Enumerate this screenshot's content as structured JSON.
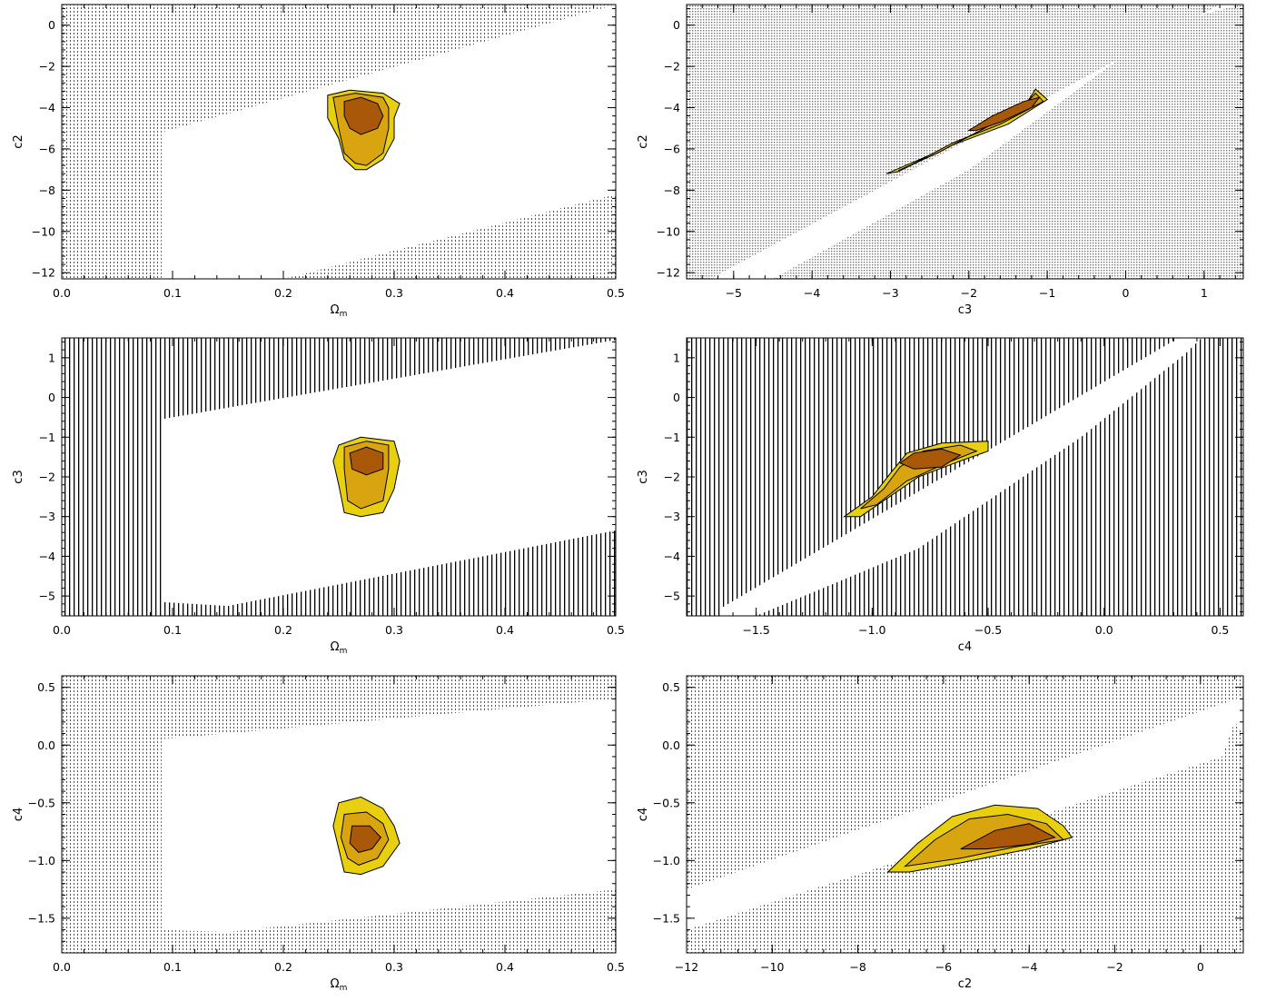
{
  "colors": {
    "ring_outer": "#e8d010",
    "ring_mid": "#d8a410",
    "ring_inner": "#a85808",
    "hatch_dense": "#b0b0b0",
    "hatch_black": "#000000",
    "hatch_dotted": "#777777"
  },
  "chart_data": [
    {
      "id": "omegam-c2",
      "type": "contour",
      "xlabel": "Ω",
      "xlabel_sub": "m",
      "ylabel": "c2",
      "xlim": [
        0.0,
        0.5
      ],
      "ylim": [
        -12.3,
        1.0
      ],
      "xticks": [
        0.0,
        0.1,
        0.2,
        0.3,
        0.4,
        0.5
      ],
      "xtick_labels": [
        "0.0",
        "0.1",
        "0.2",
        "0.3",
        "0.4",
        "0.5"
      ],
      "yticks": [
        -12,
        -10,
        -8,
        -6,
        -4,
        -2,
        0
      ],
      "ytick_labels": [
        "−12",
        "−10",
        "−8",
        "−6",
        "−4",
        "−2",
        "0"
      ],
      "hatch": "dotted",
      "excluded_regions": [
        [
          [
            0,
            -12.3
          ],
          [
            0.09,
            -12.3
          ],
          [
            0.09,
            -5.2
          ],
          [
            0.5,
            1.0
          ],
          [
            0,
            1.0
          ]
        ],
        [
          [
            0.2,
            -12.3
          ],
          [
            0.5,
            -12.3
          ],
          [
            0.5,
            -8.2
          ]
        ]
      ],
      "contours": {
        "outer": [
          [
            0.24,
            -3.4
          ],
          [
            0.26,
            -3.15
          ],
          [
            0.29,
            -3.3
          ],
          [
            0.305,
            -3.8
          ],
          [
            0.3,
            -4.5
          ],
          [
            0.3,
            -5.5
          ],
          [
            0.29,
            -6.5
          ],
          [
            0.275,
            -7.0
          ],
          [
            0.265,
            -7.0
          ],
          [
            0.255,
            -6.5
          ],
          [
            0.25,
            -5.5
          ],
          [
            0.24,
            -4.5
          ]
        ],
        "mid": [
          [
            0.245,
            -3.5
          ],
          [
            0.265,
            -3.3
          ],
          [
            0.29,
            -3.5
          ],
          [
            0.295,
            -4.0
          ],
          [
            0.295,
            -5.0
          ],
          [
            0.29,
            -6.2
          ],
          [
            0.275,
            -6.8
          ],
          [
            0.265,
            -6.7
          ],
          [
            0.255,
            -6.2
          ],
          [
            0.25,
            -5.0
          ]
        ],
        "inner": [
          [
            0.255,
            -3.7
          ],
          [
            0.27,
            -3.5
          ],
          [
            0.285,
            -3.8
          ],
          [
            0.29,
            -4.4
          ],
          [
            0.285,
            -5.0
          ],
          [
            0.27,
            -5.3
          ],
          [
            0.26,
            -5.0
          ],
          [
            0.255,
            -4.4
          ]
        ]
      }
    },
    {
      "id": "c3-c2",
      "type": "contour",
      "xlabel": "c3",
      "xlabel_sub": "",
      "ylabel": "c2",
      "xlim": [
        -5.6,
        1.5
      ],
      "ylim": [
        -12.3,
        1.0
      ],
      "xticks": [
        -5,
        -4,
        -3,
        -2,
        -1,
        0,
        1
      ],
      "xtick_labels": [
        "−5",
        "−4",
        "−3",
        "−2",
        "−1",
        "0",
        "1"
      ],
      "yticks": [
        -12,
        -10,
        -8,
        -6,
        -4,
        -2,
        0
      ],
      "ytick_labels": [
        "−12",
        "−10",
        "−8",
        "−6",
        "−4",
        "−2",
        "0"
      ],
      "hatch": "dense",
      "excluded_regions": [
        [
          [
            -5.6,
            -12.3
          ],
          [
            -5.3,
            -12.3
          ],
          [
            1.2,
            1.0
          ],
          [
            -5.6,
            1.0
          ]
        ],
        [
          [
            -4.5,
            -12.3
          ],
          [
            1.5,
            -12.3
          ],
          [
            1.5,
            1.0
          ],
          [
            1.45,
            1.0
          ],
          [
            0.5,
            0.0
          ],
          [
            -0.5,
            -2.8
          ],
          [
            -2.0,
            -7.0
          ]
        ]
      ],
      "contours": {
        "outer": [
          [
            -3.05,
            -7.2
          ],
          [
            -2.5,
            -6.3
          ],
          [
            -1.9,
            -5.2
          ],
          [
            -1.3,
            -4.0
          ],
          [
            -1.15,
            -3.1
          ],
          [
            -1.0,
            -3.6
          ],
          [
            -1.5,
            -4.8
          ],
          [
            -2.2,
            -5.8
          ],
          [
            -2.9,
            -7.1
          ]
        ],
        "mid": [
          [
            -2.9,
            -7.05
          ],
          [
            -2.4,
            -6.2
          ],
          [
            -1.8,
            -5.0
          ],
          [
            -1.3,
            -3.9
          ],
          [
            -1.15,
            -3.3
          ],
          [
            -1.05,
            -3.7
          ],
          [
            -1.6,
            -4.8
          ],
          [
            -2.2,
            -5.7
          ],
          [
            -2.8,
            -6.9
          ]
        ],
        "inner": [
          [
            -2.0,
            -5.1
          ],
          [
            -1.7,
            -4.4
          ],
          [
            -1.3,
            -3.7
          ],
          [
            -1.1,
            -3.5
          ],
          [
            -1.2,
            -4.0
          ],
          [
            -1.6,
            -4.7
          ],
          [
            -1.9,
            -5.1
          ]
        ]
      }
    },
    {
      "id": "omegam-c3",
      "type": "contour",
      "xlabel": "Ω",
      "xlabel_sub": "m",
      "ylabel": "c3",
      "xlim": [
        0.0,
        0.5
      ],
      "ylim": [
        -5.5,
        1.5
      ],
      "xticks": [
        0.0,
        0.1,
        0.2,
        0.3,
        0.4,
        0.5
      ],
      "xtick_labels": [
        "0.0",
        "0.1",
        "0.2",
        "0.3",
        "0.4",
        "0.5"
      ],
      "yticks": [
        -5,
        -4,
        -3,
        -2,
        -1,
        0,
        1
      ],
      "ytick_labels": [
        "−5",
        "−4",
        "−3",
        "−2",
        "−1",
        "0",
        "1"
      ],
      "hatch": "black",
      "excluded_regions": [
        [
          [
            0,
            -5.5
          ],
          [
            0.09,
            -5.5
          ],
          [
            0.09,
            -0.55
          ],
          [
            0.5,
            1.45
          ],
          [
            0.5,
            1.5
          ],
          [
            0,
            1.5
          ]
        ],
        [
          [
            0.09,
            -5.5
          ],
          [
            0.09,
            -5.15
          ],
          [
            0.15,
            -5.25
          ],
          [
            0.5,
            -3.35
          ],
          [
            0.5,
            -5.5
          ]
        ]
      ],
      "contours": {
        "outer": [
          [
            0.25,
            -1.2
          ],
          [
            0.27,
            -1.0
          ],
          [
            0.3,
            -1.1
          ],
          [
            0.305,
            -1.6
          ],
          [
            0.3,
            -2.3
          ],
          [
            0.29,
            -2.9
          ],
          [
            0.27,
            -3.0
          ],
          [
            0.255,
            -2.9
          ],
          [
            0.25,
            -2.2
          ],
          [
            0.245,
            -1.6
          ]
        ],
        "mid": [
          [
            0.255,
            -1.25
          ],
          [
            0.275,
            -1.1
          ],
          [
            0.295,
            -1.2
          ],
          [
            0.295,
            -1.8
          ],
          [
            0.29,
            -2.6
          ],
          [
            0.27,
            -2.8
          ],
          [
            0.258,
            -2.6
          ],
          [
            0.255,
            -1.8
          ]
        ],
        "inner": [
          [
            0.26,
            -1.4
          ],
          [
            0.275,
            -1.25
          ],
          [
            0.29,
            -1.4
          ],
          [
            0.29,
            -1.8
          ],
          [
            0.275,
            -1.95
          ],
          [
            0.262,
            -1.8
          ]
        ]
      }
    },
    {
      "id": "c4-c3",
      "type": "contour",
      "xlabel": "c4",
      "xlabel_sub": "",
      "ylabel": "c3",
      "xlim": [
        -1.8,
        0.6
      ],
      "ylim": [
        -5.5,
        1.5
      ],
      "xticks": [
        -1.5,
        -1.0,
        -0.5,
        0.0,
        0.5
      ],
      "xtick_labels": [
        "−1.5",
        "−1.0",
        "−0.5",
        "0.0",
        "0.5"
      ],
      "yticks": [
        -5,
        -4,
        -3,
        -2,
        -1,
        0,
        1
      ],
      "ytick_labels": [
        "−5",
        "−4",
        "−3",
        "−2",
        "−1",
        "0",
        "1"
      ],
      "hatch": "black",
      "excluded_regions": [
        [
          [
            -1.8,
            -5.5
          ],
          [
            -1.8,
            1.5
          ],
          [
            0.32,
            1.5
          ],
          [
            -1.65,
            -5.3
          ],
          [
            -1.65,
            -5.5
          ]
        ],
        [
          [
            -1.5,
            -5.5
          ],
          [
            0.6,
            -5.5
          ],
          [
            0.6,
            1.5
          ],
          [
            0.42,
            1.5
          ],
          [
            0.35,
            1.1
          ],
          [
            -0.1,
            -1.0
          ],
          [
            -0.8,
            -3.8
          ]
        ]
      ],
      "contours": {
        "outer": [
          [
            -1.12,
            -3.0
          ],
          [
            -1.0,
            -2.5
          ],
          [
            -0.92,
            -1.9
          ],
          [
            -0.85,
            -1.4
          ],
          [
            -0.7,
            -1.15
          ],
          [
            -0.5,
            -1.1
          ],
          [
            -0.5,
            -1.35
          ],
          [
            -0.62,
            -1.6
          ],
          [
            -0.8,
            -2.0
          ],
          [
            -0.95,
            -2.6
          ],
          [
            -1.05,
            -3.0
          ]
        ],
        "mid": [
          [
            -1.05,
            -2.8
          ],
          [
            -0.95,
            -2.3
          ],
          [
            -0.88,
            -1.75
          ],
          [
            -0.78,
            -1.35
          ],
          [
            -0.62,
            -1.2
          ],
          [
            -0.55,
            -1.35
          ],
          [
            -0.68,
            -1.65
          ],
          [
            -0.85,
            -2.1
          ],
          [
            -0.98,
            -2.7
          ]
        ],
        "inner": [
          [
            -0.88,
            -1.65
          ],
          [
            -0.82,
            -1.4
          ],
          [
            -0.7,
            -1.3
          ],
          [
            -0.62,
            -1.45
          ],
          [
            -0.7,
            -1.75
          ],
          [
            -0.82,
            -1.8
          ]
        ]
      }
    },
    {
      "id": "omegam-c4",
      "type": "contour",
      "xlabel": "Ω",
      "xlabel_sub": "m",
      "ylabel": "c4",
      "xlim": [
        0.0,
        0.5
      ],
      "ylim": [
        -1.8,
        0.6
      ],
      "xticks": [
        0.0,
        0.1,
        0.2,
        0.3,
        0.4,
        0.5
      ],
      "xtick_labels": [
        "0.0",
        "0.1",
        "0.2",
        "0.3",
        "0.4",
        "0.5"
      ],
      "yticks": [
        -1.5,
        -1.0,
        -0.5,
        0.0,
        0.5
      ],
      "ytick_labels": [
        "−1.5",
        "−1.0",
        "−0.5",
        "0.0",
        "0.5"
      ],
      "hatch": "dotted",
      "excluded_regions": [
        [
          [
            0,
            -1.8
          ],
          [
            0.09,
            -1.8
          ],
          [
            0.09,
            0.05
          ],
          [
            0.5,
            0.4
          ],
          [
            0.5,
            0.6
          ],
          [
            0,
            0.6
          ]
        ],
        [
          [
            0.09,
            -1.8
          ],
          [
            0.09,
            -1.6
          ],
          [
            0.15,
            -1.62
          ],
          [
            0.5,
            -1.25
          ],
          [
            0.5,
            -1.8
          ]
        ]
      ],
      "contours": {
        "outer": [
          [
            0.25,
            -0.5
          ],
          [
            0.27,
            -0.45
          ],
          [
            0.29,
            -0.55
          ],
          [
            0.3,
            -0.7
          ],
          [
            0.305,
            -0.85
          ],
          [
            0.29,
            -1.05
          ],
          [
            0.27,
            -1.12
          ],
          [
            0.255,
            -1.1
          ],
          [
            0.25,
            -0.9
          ],
          [
            0.245,
            -0.7
          ]
        ],
        "mid": [
          [
            0.255,
            -0.6
          ],
          [
            0.275,
            -0.58
          ],
          [
            0.29,
            -0.68
          ],
          [
            0.295,
            -0.82
          ],
          [
            0.285,
            -0.98
          ],
          [
            0.268,
            -1.04
          ],
          [
            0.258,
            -0.98
          ],
          [
            0.252,
            -0.8
          ]
        ],
        "inner": [
          [
            0.262,
            -0.7
          ],
          [
            0.278,
            -0.7
          ],
          [
            0.288,
            -0.8
          ],
          [
            0.28,
            -0.9
          ],
          [
            0.268,
            -0.93
          ],
          [
            0.26,
            -0.85
          ]
        ]
      }
    },
    {
      "id": "c2-c4",
      "type": "contour",
      "xlabel": "c2",
      "xlabel_sub": "",
      "ylabel": "c4",
      "xlim": [
        -12.0,
        1.0
      ],
      "ylim": [
        -1.8,
        0.6
      ],
      "xticks": [
        -12,
        -10,
        -8,
        -6,
        -4,
        -2,
        0
      ],
      "xtick_labels": [
        "−12",
        "−10",
        "−8",
        "−6",
        "−4",
        "−2",
        "0"
      ],
      "yticks": [
        -1.5,
        -1.0,
        -0.5,
        0.0,
        0.5
      ],
      "ytick_labels": [
        "−1.5",
        "−1.0",
        "−0.5",
        "0.0",
        "0.5"
      ],
      "hatch": "dotted",
      "excluded_regions": [
        [
          [
            -12,
            -1.8
          ],
          [
            -12,
            0.6
          ],
          [
            1.0,
            0.6
          ],
          [
            1.0,
            0.42
          ],
          [
            -12,
            -1.25
          ]
        ],
        [
          [
            -12,
            -1.8
          ],
          [
            -12,
            -1.6
          ],
          [
            0.5,
            -0.1
          ],
          [
            0.8,
            0.2
          ],
          [
            1.0,
            0.1
          ],
          [
            1.0,
            -1.8
          ]
        ]
      ],
      "contours": {
        "outer": [
          [
            -7.3,
            -1.1
          ],
          [
            -6.6,
            -0.85
          ],
          [
            -5.8,
            -0.62
          ],
          [
            -4.8,
            -0.52
          ],
          [
            -3.8,
            -0.55
          ],
          [
            -3.2,
            -0.7
          ],
          [
            -3.0,
            -0.8
          ],
          [
            -4.0,
            -0.9
          ],
          [
            -5.6,
            -1.02
          ],
          [
            -6.8,
            -1.1
          ]
        ],
        "mid": [
          [
            -6.9,
            -1.05
          ],
          [
            -6.2,
            -0.82
          ],
          [
            -5.4,
            -0.64
          ],
          [
            -4.5,
            -0.6
          ],
          [
            -3.6,
            -0.68
          ],
          [
            -3.2,
            -0.82
          ],
          [
            -4.3,
            -0.88
          ],
          [
            -5.6,
            -0.98
          ]
        ],
        "inner": [
          [
            -5.6,
            -0.9
          ],
          [
            -4.8,
            -0.74
          ],
          [
            -4.0,
            -0.68
          ],
          [
            -3.4,
            -0.8
          ],
          [
            -4.0,
            -0.86
          ],
          [
            -5.0,
            -0.9
          ]
        ]
      }
    }
  ]
}
